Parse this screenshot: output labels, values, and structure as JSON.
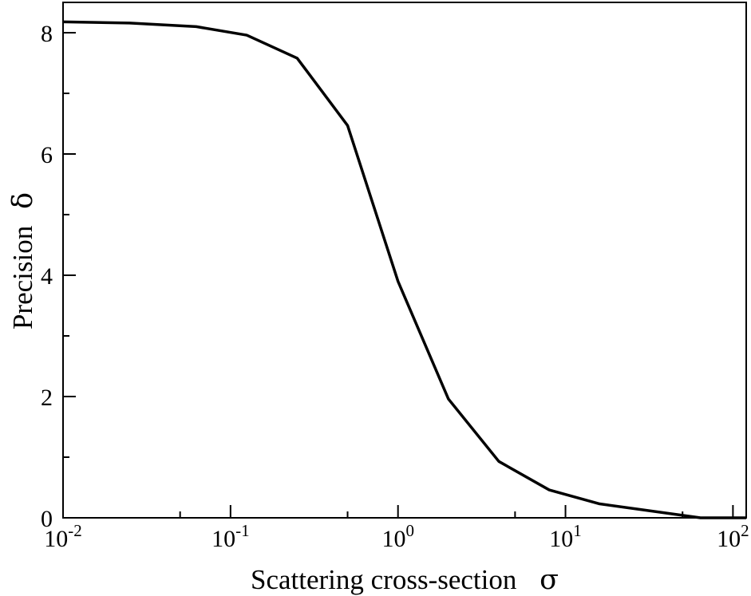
{
  "chart_data": {
    "type": "line",
    "xscale": "log",
    "xlim": [
      0.01,
      120
    ],
    "ylim": [
      0,
      8.5
    ],
    "grid": false,
    "xlabel": "Scattering cross-section",
    "xlabel_symbol": "σ",
    "ylabel": "Precision",
    "ylabel_symbol": "δ",
    "x_ticks": [
      {
        "value": 0.01,
        "base": "10",
        "exp": "-2"
      },
      {
        "value": 0.1,
        "base": "10",
        "exp": "-1"
      },
      {
        "value": 1,
        "base": "10",
        "exp": "0"
      },
      {
        "value": 10,
        "base": "10",
        "exp": "1"
      },
      {
        "value": 100,
        "base": "10",
        "exp": "2"
      }
    ],
    "y_ticks": [
      {
        "value": 0,
        "label": "0"
      },
      {
        "value": 2,
        "label": "2"
      },
      {
        "value": 4,
        "label": "4"
      },
      {
        "value": 6,
        "label": "6"
      },
      {
        "value": 8,
        "label": "8"
      }
    ],
    "y_minor_ticks": [
      1,
      3,
      5,
      7
    ],
    "series": [
      {
        "color": "#000000",
        "x": [
          0.01,
          0.025,
          0.0625,
          0.125,
          0.25,
          0.5,
          1,
          2,
          4,
          8,
          16,
          64,
          120
        ],
        "y": [
          8.18,
          8.16,
          8.1,
          7.96,
          7.58,
          6.47,
          3.9,
          1.96,
          0.93,
          0.46,
          0.23,
          0.0,
          0.0
        ]
      }
    ]
  }
}
